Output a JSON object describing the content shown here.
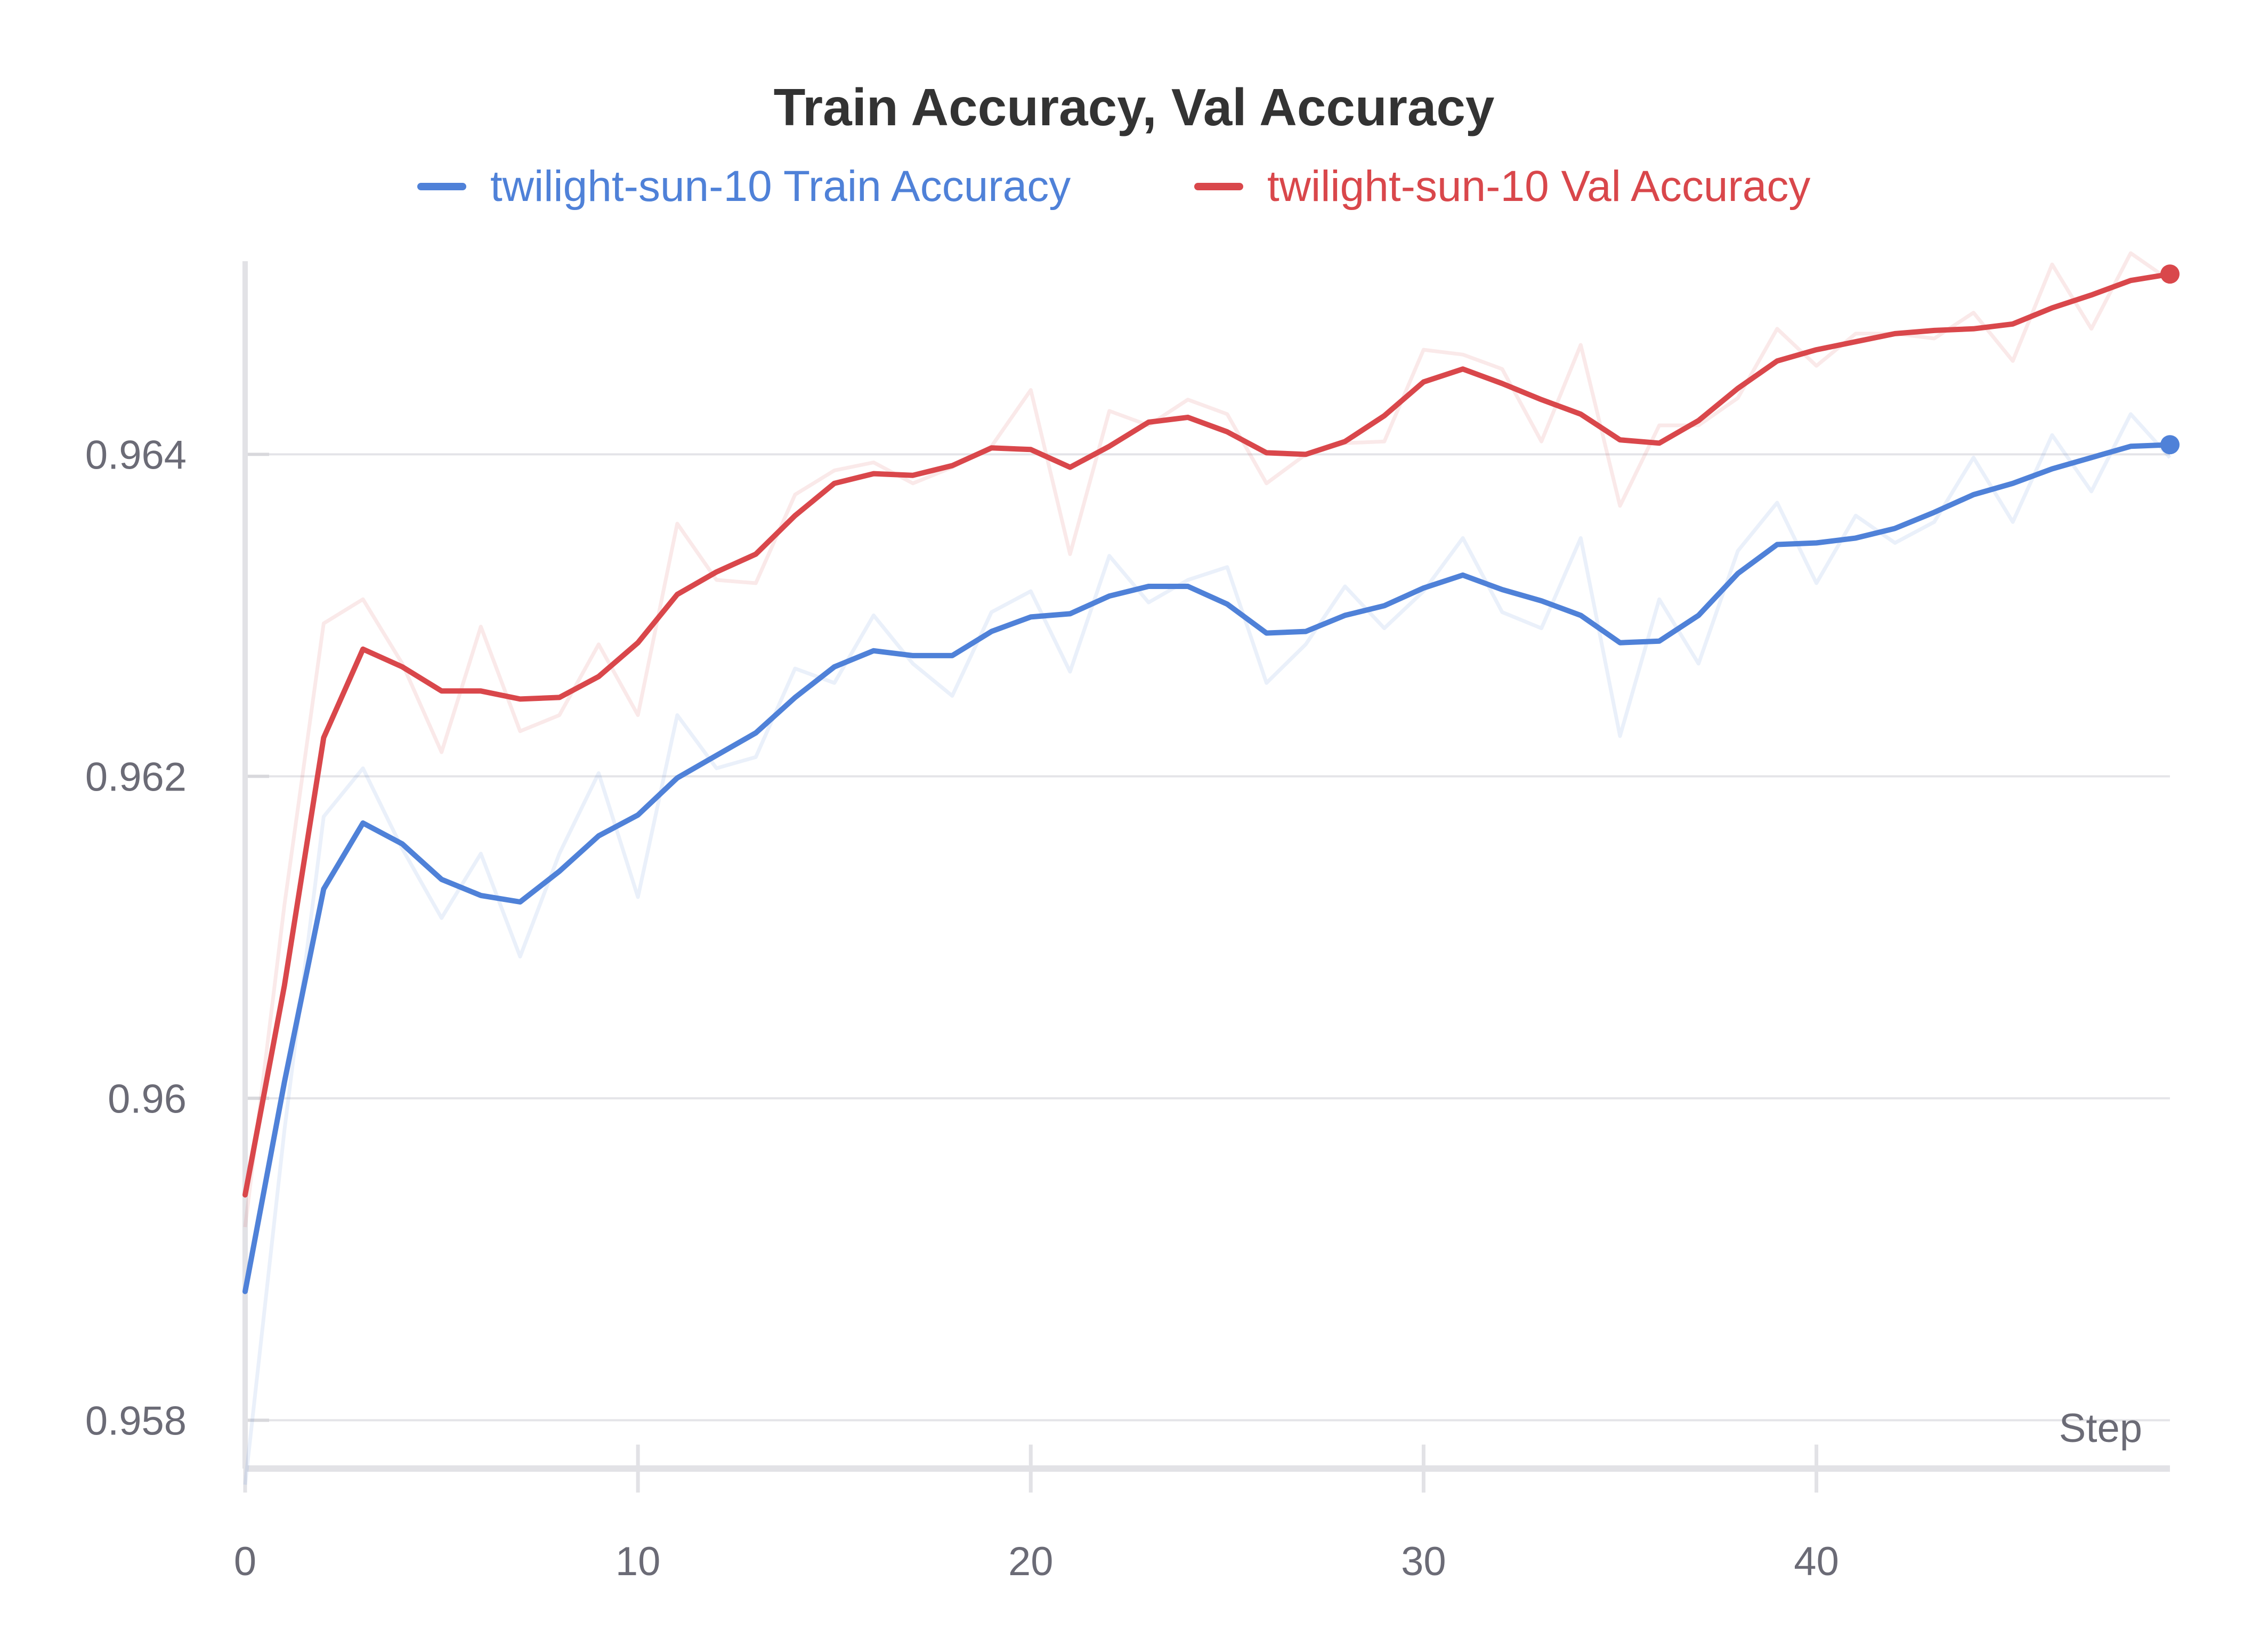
{
  "chart_data": {
    "type": "line",
    "title": "Train Accuracy, Val Accuracy",
    "xlabel": "Step",
    "ylabel": "",
    "xlim": [
      0,
      49
    ],
    "ylim": [
      0.9577,
      0.9652
    ],
    "x_ticks": [
      0,
      10,
      20,
      30,
      40
    ],
    "y_ticks": [
      0.958,
      0.96,
      0.962,
      0.964
    ],
    "x_tick_labels": [
      "0",
      "10",
      "20",
      "30",
      "40"
    ],
    "y_tick_labels": [
      "0.958",
      "0.96",
      "0.962",
      "0.964"
    ],
    "grid": "horizontal",
    "legend_position": "top",
    "x": [
      0,
      1,
      2,
      3,
      4,
      5,
      6,
      7,
      8,
      9,
      10,
      11,
      12,
      13,
      14,
      15,
      16,
      17,
      18,
      19,
      20,
      21,
      22,
      23,
      24,
      25,
      26,
      27,
      28,
      29,
      30,
      31,
      32,
      33,
      34,
      35,
      36,
      37,
      38,
      39,
      40,
      41,
      42,
      43,
      44,
      45,
      46,
      47,
      48,
      49
    ],
    "series": [
      {
        "name": "twilight-sun-10 Train Accuracy",
        "color": "#4f81d8",
        "values": [
          0.9588,
          0.9601,
          0.9613,
          0.96171,
          0.96158,
          0.96136,
          0.96126,
          0.96122,
          0.96141,
          0.96163,
          0.96176,
          0.96199,
          0.96213,
          0.96227,
          0.96249,
          0.96268,
          0.96278,
          0.96275,
          0.96275,
          0.9629,
          0.96299,
          0.96301,
          0.96312,
          0.96318,
          0.96318,
          0.96307,
          0.96289,
          0.9629,
          0.963,
          0.96306,
          0.96317,
          0.96325,
          0.96316,
          0.96309,
          0.963,
          0.96283,
          0.96284,
          0.963,
          0.96326,
          0.96344,
          0.96345,
          0.96348,
          0.96354,
          0.96364,
          0.96375,
          0.96382,
          0.96391,
          0.96398,
          0.96405,
          0.96406
        ],
        "raw_values": [
          0.9576,
          0.9598,
          0.96175,
          0.96205,
          0.96155,
          0.96112,
          0.96152,
          0.96088,
          0.96152,
          0.96202,
          0.96125,
          0.96238,
          0.96205,
          0.96212,
          0.96267,
          0.96258,
          0.963,
          0.9627,
          0.9625,
          0.96302,
          0.96315,
          0.96265,
          0.96337,
          0.96308,
          0.96322,
          0.9633,
          0.96258,
          0.96282,
          0.96318,
          0.96292,
          0.96315,
          0.96348,
          0.96302,
          0.96292,
          0.96348,
          0.96225,
          0.9631,
          0.9627,
          0.9634,
          0.9637,
          0.9632,
          0.96362,
          0.96345,
          0.96358,
          0.96398,
          0.96358,
          0.96412,
          0.96377,
          0.96425,
          0.96398
        ]
      },
      {
        "name": "twilight-sun-10 Val Accuracy",
        "color": "#d9474b",
        "values": [
          0.9594,
          0.9607,
          0.96224,
          0.96279,
          0.96268,
          0.96253,
          0.96253,
          0.96248,
          0.96249,
          0.96262,
          0.96283,
          0.96313,
          0.96327,
          0.96338,
          0.96362,
          0.96382,
          0.96388,
          0.96387,
          0.96393,
          0.96404,
          0.96403,
          0.96392,
          0.96405,
          0.9642,
          0.96423,
          0.96414,
          0.96401,
          0.964,
          0.96408,
          0.96424,
          0.96445,
          0.96453,
          0.96444,
          0.96434,
          0.96425,
          0.96409,
          0.96407,
          0.96421,
          0.96441,
          0.96458,
          0.96465,
          0.9647,
          0.96475,
          0.96477,
          0.96478,
          0.96481,
          0.96491,
          0.96499,
          0.96508,
          0.96512
        ],
        "raw_values": [
          0.9592,
          0.9612,
          0.96295,
          0.9631,
          0.9627,
          0.96215,
          0.96293,
          0.96228,
          0.96238,
          0.96282,
          0.96238,
          0.96357,
          0.96322,
          0.9632,
          0.96375,
          0.9639,
          0.96395,
          0.96382,
          0.96392,
          0.96405,
          0.9644,
          0.96338,
          0.96427,
          0.96418,
          0.96434,
          0.96425,
          0.96382,
          0.964,
          0.96407,
          0.96408,
          0.96465,
          0.96462,
          0.96453,
          0.96408,
          0.96468,
          0.96368,
          0.96418,
          0.96418,
          0.96435,
          0.96478,
          0.96455,
          0.96475,
          0.96475,
          0.96472,
          0.96488,
          0.96458,
          0.96518,
          0.96478,
          0.96525,
          0.96508
        ]
      }
    ]
  }
}
